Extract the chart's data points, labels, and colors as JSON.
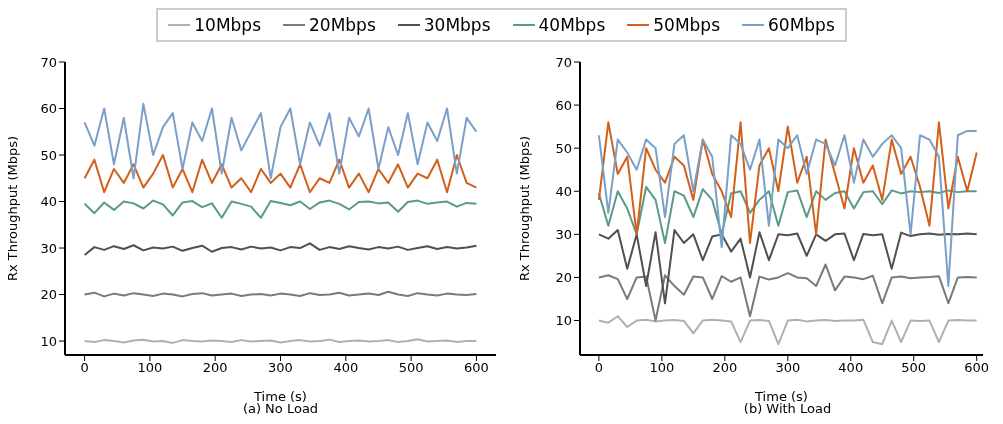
{
  "chart_data": [
    {
      "type": "line",
      "title": "(a) No Load",
      "xlabel": "Time (s)",
      "ylabel": "Rx Throughput (Mbps)",
      "legend": "top",
      "line_style": "solid",
      "marker": "none",
      "xlim": [
        -30,
        630
      ],
      "ylim": [
        7,
        70
      ],
      "xticks": [
        0,
        100,
        200,
        300,
        400,
        500,
        600
      ],
      "yticks": [
        10,
        20,
        30,
        40,
        50,
        60,
        70
      ],
      "x": [
        0,
        15,
        30,
        45,
        60,
        75,
        90,
        105,
        120,
        135,
        150,
        165,
        180,
        195,
        210,
        225,
        240,
        255,
        270,
        285,
        300,
        315,
        330,
        345,
        360,
        375,
        390,
        405,
        420,
        435,
        450,
        465,
        480,
        495,
        510,
        525,
        540,
        555,
        570,
        585,
        600
      ],
      "series": [
        {
          "name": "10Mbps",
          "color": "#b0b0b0",
          "values": [
            10,
            9.8,
            10.2,
            10,
            9.7,
            10.1,
            10.3,
            9.9,
            10,
            9.6,
            10.2,
            10,
            9.9,
            10.1,
            10,
            9.8,
            10.2,
            9.9,
            10,
            10.1,
            9.7,
            10,
            10.2,
            9.9,
            10,
            10.3,
            9.8,
            10,
            10.1,
            9.9,
            10,
            10.2,
            9.8,
            10,
            10.4,
            9.9,
            10,
            10.1,
            9.8,
            10,
            10
          ]
        },
        {
          "name": "20Mbps",
          "color": "#7a7a7a",
          "values": [
            20,
            20.4,
            19.6,
            20.2,
            19.8,
            20.3,
            20,
            19.7,
            20.2,
            20,
            19.6,
            20.1,
            20.3,
            19.8,
            20,
            20.2,
            19.7,
            20,
            20.1,
            19.8,
            20.2,
            20,
            19.7,
            20.3,
            19.9,
            20,
            20.4,
            19.8,
            20,
            20.2,
            19.9,
            20.6,
            20,
            19.7,
            20.3,
            20,
            19.8,
            20.2,
            20,
            19.9,
            20.1
          ]
        },
        {
          "name": "30Mbps",
          "color": "#505050",
          "values": [
            28.5,
            30.2,
            29.6,
            30.4,
            29.8,
            30.6,
            29.5,
            30.1,
            29.9,
            30.3,
            29.4,
            30,
            30.5,
            29.2,
            30,
            30.2,
            29.7,
            30.3,
            29.9,
            30.1,
            29.5,
            30.2,
            30,
            31,
            29.6,
            30.2,
            29.8,
            30.4,
            30,
            29.7,
            30.2,
            29.9,
            30.3,
            29.6,
            30,
            30.4,
            29.8,
            30.2,
            29.9,
            30.1,
            30.5
          ]
        },
        {
          "name": "40Mbps",
          "color": "#5a9a88",
          "values": [
            39.5,
            37.5,
            39.8,
            38.2,
            40,
            39.6,
            38.5,
            40.2,
            39.4,
            37,
            39.8,
            40.1,
            38.8,
            39.6,
            36.5,
            40,
            39.5,
            38.9,
            36.5,
            40.1,
            39.7,
            39.2,
            40,
            38.4,
            39.8,
            40.2,
            39.5,
            38.3,
            39.9,
            40,
            39.6,
            39.8,
            37.8,
            39.9,
            40.2,
            39.5,
            39.8,
            40,
            38.9,
            39.7,
            39.5
          ]
        },
        {
          "name": "50Mbps",
          "color": "#d2601a",
          "values": [
            45,
            49,
            42,
            47,
            44,
            48,
            43,
            46,
            50,
            43,
            47,
            42,
            49,
            44,
            48,
            43,
            45,
            42,
            47,
            44,
            46,
            43,
            48,
            42,
            45,
            44,
            49,
            43,
            46,
            42,
            47,
            44,
            48,
            43,
            46,
            45,
            49,
            42,
            50,
            44,
            43
          ]
        },
        {
          "name": "60Mbps",
          "color": "#7a9fc8",
          "values": [
            57,
            52,
            60,
            48,
            58,
            45,
            61,
            50,
            56,
            59,
            47,
            57,
            53,
            60,
            46,
            58,
            51,
            55,
            59,
            45,
            56,
            60,
            48,
            57,
            52,
            59,
            46,
            58,
            54,
            60,
            47,
            56,
            50,
            59,
            48,
            57,
            53,
            60,
            46,
            58,
            55
          ]
        }
      ]
    },
    {
      "type": "line",
      "title": "(b) With Load",
      "xlabel": "Time (s)",
      "ylabel": "Rx Throughput (Mbps)",
      "line_style": "solid",
      "marker": "none",
      "xlim": [
        -30,
        610
      ],
      "ylim": [
        2,
        70
      ],
      "xticks": [
        0,
        100,
        200,
        300,
        400,
        500,
        600
      ],
      "yticks": [
        10,
        20,
        30,
        40,
        50,
        60,
        70
      ],
      "x": [
        0,
        15,
        30,
        45,
        60,
        75,
        90,
        105,
        120,
        135,
        150,
        165,
        180,
        195,
        210,
        225,
        240,
        255,
        270,
        285,
        300,
        315,
        330,
        345,
        360,
        375,
        390,
        405,
        420,
        435,
        450,
        465,
        480,
        495,
        510,
        525,
        540,
        555,
        570,
        585,
        600
      ],
      "series": [
        {
          "color": "#b0b0b0",
          "values": [
            10,
            9.5,
            11,
            8.5,
            10,
            10.2,
            9.8,
            10,
            10.1,
            9.9,
            7,
            10,
            10.2,
            10,
            9.8,
            5,
            10,
            10.1,
            9.9,
            4.5,
            10,
            10.2,
            9.8,
            10,
            10.1,
            9.9,
            10,
            10,
            10.2,
            5,
            4.5,
            10,
            5,
            10,
            9.9,
            10,
            5,
            10,
            10.1,
            10,
            10
          ]
        },
        {
          "color": "#7a7a7a",
          "values": [
            20,
            20.5,
            19.6,
            15,
            20,
            20.2,
            10,
            20.5,
            18,
            16,
            20.2,
            20,
            15,
            20.3,
            19,
            20,
            11,
            20.2,
            19.5,
            20,
            21,
            20,
            19.8,
            18,
            23,
            17,
            20.2,
            20,
            19.6,
            20.4,
            14,
            20,
            20.2,
            19.8,
            20,
            20.1,
            20.3,
            14,
            20,
            20.1,
            20
          ]
        },
        {
          "color": "#505050",
          "values": [
            30,
            29,
            31,
            22,
            30,
            18,
            30.5,
            14,
            31,
            28,
            30,
            24,
            29.5,
            30,
            26,
            29,
            20,
            30.5,
            24,
            30,
            29.8,
            30.2,
            25,
            30,
            28.5,
            30,
            30.2,
            24,
            30.1,
            29.8,
            30,
            22,
            30.4,
            29.6,
            30,
            30.2,
            29.9,
            30.1,
            30,
            30.2,
            30
          ]
        },
        {
          "color": "#5a9a88",
          "values": [
            39.5,
            32,
            40,
            36,
            30,
            41,
            38,
            28,
            40,
            39,
            34,
            40.5,
            38,
            30,
            39.5,
            40,
            35,
            38,
            40,
            32,
            39.8,
            40.2,
            34,
            40,
            38,
            39.6,
            40,
            36,
            39.8,
            40,
            37,
            40.2,
            39.5,
            40,
            39.8,
            40,
            39.6,
            40.2,
            39.8,
            40,
            40
          ]
        },
        {
          "color": "#d2601a",
          "values": [
            38,
            56,
            44,
            48,
            30,
            50,
            45,
            42,
            48,
            46,
            38,
            52,
            44,
            40,
            34,
            56,
            28,
            46,
            50,
            40,
            55,
            42,
            48,
            30,
            52,
            44,
            36,
            50,
            42,
            46,
            38,
            52,
            44,
            48,
            41,
            32,
            56,
            36,
            48,
            40,
            49
          ]
        },
        {
          "color": "#7a9fc8",
          "values": [
            53,
            35,
            52,
            49,
            45,
            52,
            50,
            34,
            51,
            53,
            40,
            52,
            48,
            27,
            53,
            51,
            45,
            52,
            32,
            52,
            50,
            53,
            44,
            52,
            51,
            46,
            53,
            42,
            52,
            48,
            51,
            53,
            50,
            30,
            53,
            52,
            48,
            18,
            53,
            54,
            54
          ]
        }
      ]
    }
  ]
}
